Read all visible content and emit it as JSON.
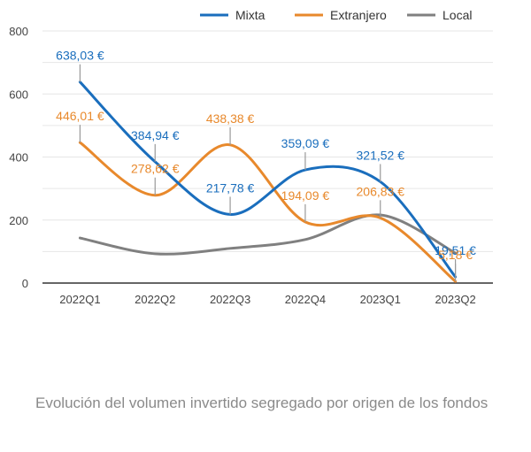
{
  "chart_data": {
    "type": "line",
    "title": "",
    "xlabel": "",
    "ylabel": "",
    "categories": [
      "2022Q1",
      "2022Q2",
      "2022Q3",
      "2022Q4",
      "2023Q1",
      "2023Q2"
    ],
    "ylim": [
      0,
      800
    ],
    "yticks": [
      0,
      200,
      400,
      600,
      800
    ],
    "ytick_labels": [
      "0",
      "200",
      "400",
      "600",
      "800"
    ],
    "grid": true,
    "smooth": true,
    "legend_position": "top-right",
    "series": [
      {
        "name": "Mixta",
        "color": "#1a6ebd",
        "values": [
          638.03,
          384.94,
          217.78,
          359.09,
          321.52,
          19.51
        ],
        "labels": [
          "638,03 €",
          "384,94 €",
          "217,78 €",
          "359,09 €",
          "321,52 €",
          "19,51 €"
        ]
      },
      {
        "name": "Extranjero",
        "color": "#e8892c",
        "values": [
          446.01,
          278.62,
          438.38,
          194.09,
          206.83,
          5.18
        ],
        "labels": [
          "446,01 €",
          "278,62 €",
          "438,38 €",
          "194,09 €",
          "206,83 €",
          "5,18 €"
        ]
      },
      {
        "name": "Local",
        "color": "#808080",
        "values": [
          143,
          93,
          110,
          138,
          216,
          95
        ],
        "labels": []
      }
    ]
  },
  "caption": "Evolución del volumen invertido segregado por origen de los fondos"
}
